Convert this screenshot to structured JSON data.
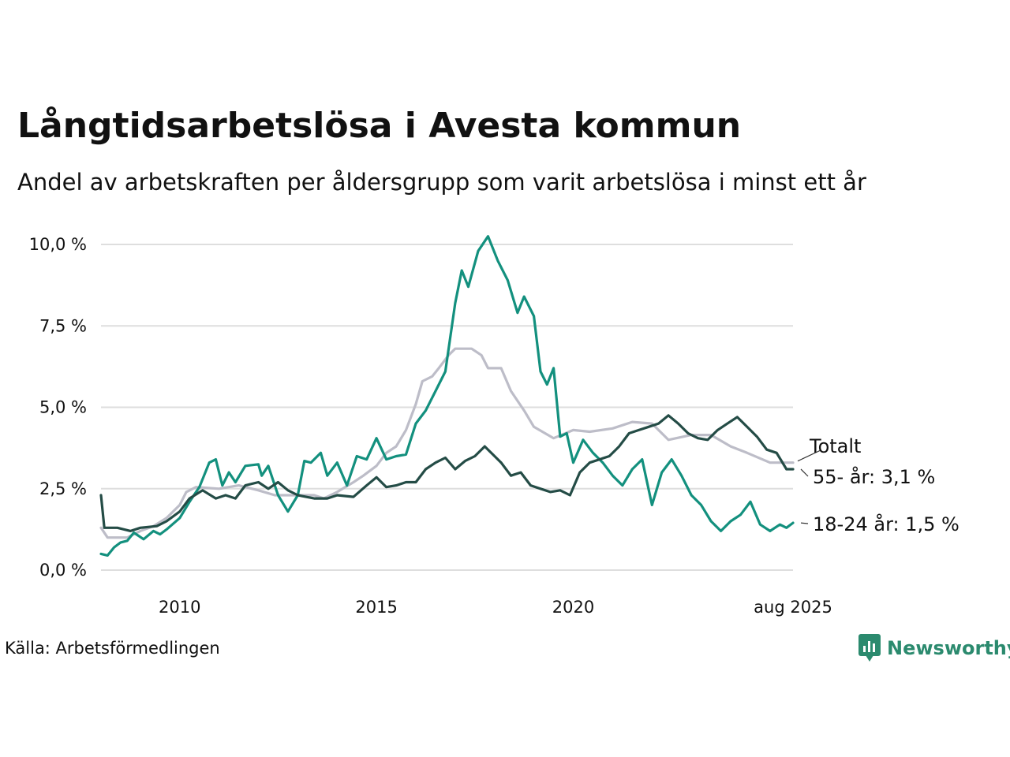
{
  "title": "Långtidsarbetslösa i Avesta kommun",
  "subtitle": "Andel av arbetskraften per åldersgrupp som varit arbetslösa i minst ett år",
  "source": "Källa: Arbetsförmedlingen",
  "brand": "Newsworthy",
  "colors": {
    "young": "#13907e",
    "old": "#244c46",
    "total": "#bdbdc8",
    "grid": "#dedede",
    "brand": "#2b8a6e"
  },
  "chart_data": {
    "type": "line",
    "title": "Långtidsarbetslösa i Avesta kommun",
    "xlabel": "",
    "ylabel": "",
    "xlim": [
      "2008-01",
      "2025-08"
    ],
    "ylim": [
      0,
      10
    ],
    "grid": true,
    "x_ticks": [
      {
        "x": "2010-01",
        "label": "2010"
      },
      {
        "x": "2015-01",
        "label": "2015"
      },
      {
        "x": "2020-01",
        "label": "2020"
      },
      {
        "x": "2025-08",
        "label": "aug 2025"
      }
    ],
    "y_ticks": [
      {
        "y": 0,
        "label": "0,0 %"
      },
      {
        "y": 2.5,
        "label": "2,5 %"
      },
      {
        "y": 5,
        "label": "5,0 %"
      },
      {
        "y": 7.5,
        "label": "7,5 %"
      },
      {
        "y": 10,
        "label": "10,0 %"
      }
    ],
    "end_labels": [
      {
        "series": "total",
        "label": "Totalt"
      },
      {
        "series": "old",
        "label": "55- år: 3,1 %"
      },
      {
        "series": "young",
        "label": "18-24 år: 1,5 %"
      }
    ],
    "series": [
      {
        "key": "total",
        "name": "Totalt",
        "points": [
          [
            "2008-01",
            1.3
          ],
          [
            "2008-03",
            1.0
          ],
          [
            "2008-09",
            1.0
          ],
          [
            "2009-01",
            1.2
          ],
          [
            "2009-05",
            1.35
          ],
          [
            "2009-09",
            1.6
          ],
          [
            "2010-01",
            2.0
          ],
          [
            "2010-03",
            2.4
          ],
          [
            "2010-06",
            2.55
          ],
          [
            "2011-01",
            2.5
          ],
          [
            "2011-07",
            2.6
          ],
          [
            "2012-01",
            2.45
          ],
          [
            "2012-06",
            2.3
          ],
          [
            "2013-01",
            2.3
          ],
          [
            "2013-06",
            2.3
          ],
          [
            "2013-09",
            2.2
          ],
          [
            "2014-01",
            2.4
          ],
          [
            "2014-06",
            2.7
          ],
          [
            "2014-09",
            2.9
          ],
          [
            "2015-01",
            3.2
          ],
          [
            "2015-04",
            3.6
          ],
          [
            "2015-07",
            3.8
          ],
          [
            "2015-10",
            4.3
          ],
          [
            "2016-01",
            5.1
          ],
          [
            "2016-03",
            5.8
          ],
          [
            "2016-06",
            5.95
          ],
          [
            "2016-08",
            6.2
          ],
          [
            "2016-11",
            6.6
          ],
          [
            "2017-01",
            6.8
          ],
          [
            "2017-06",
            6.8
          ],
          [
            "2017-09",
            6.6
          ],
          [
            "2017-11",
            6.2
          ],
          [
            "2018-03",
            6.2
          ],
          [
            "2018-06",
            5.5
          ],
          [
            "2018-10",
            4.9
          ],
          [
            "2019-01",
            4.4
          ],
          [
            "2019-07",
            4.05
          ],
          [
            "2020-01",
            4.3
          ],
          [
            "2020-06",
            4.25
          ],
          [
            "2021-01",
            4.35
          ],
          [
            "2021-07",
            4.55
          ],
          [
            "2022-01",
            4.5
          ],
          [
            "2022-06",
            4.0
          ],
          [
            "2023-01",
            4.15
          ],
          [
            "2023-07",
            4.15
          ],
          [
            "2024-01",
            3.8
          ],
          [
            "2024-06",
            3.6
          ],
          [
            "2025-01",
            3.3
          ],
          [
            "2025-08",
            3.3
          ]
        ]
      },
      {
        "key": "young",
        "name": "18-24 år",
        "points": [
          [
            "2008-01",
            0.5
          ],
          [
            "2008-03",
            0.45
          ],
          [
            "2008-05",
            0.7
          ],
          [
            "2008-07",
            0.85
          ],
          [
            "2008-09",
            0.9
          ],
          [
            "2008-11",
            1.15
          ],
          [
            "2009-02",
            0.95
          ],
          [
            "2009-05",
            1.2
          ],
          [
            "2009-07",
            1.1
          ],
          [
            "2009-09",
            1.25
          ],
          [
            "2010-01",
            1.6
          ],
          [
            "2010-04",
            2.1
          ],
          [
            "2010-07",
            2.55
          ],
          [
            "2010-10",
            3.3
          ],
          [
            "2010-12",
            3.4
          ],
          [
            "2011-02",
            2.6
          ],
          [
            "2011-04",
            3.0
          ],
          [
            "2011-06",
            2.7
          ],
          [
            "2011-09",
            3.2
          ],
          [
            "2012-01",
            3.25
          ],
          [
            "2012-02",
            2.9
          ],
          [
            "2012-04",
            3.2
          ],
          [
            "2012-07",
            2.3
          ],
          [
            "2012-10",
            1.8
          ],
          [
            "2013-01",
            2.3
          ],
          [
            "2013-03",
            3.35
          ],
          [
            "2013-05",
            3.3
          ],
          [
            "2013-08",
            3.6
          ],
          [
            "2013-10",
            2.9
          ],
          [
            "2014-01",
            3.3
          ],
          [
            "2014-04",
            2.6
          ],
          [
            "2014-07",
            3.5
          ],
          [
            "2014-10",
            3.4
          ],
          [
            "2015-01",
            4.05
          ],
          [
            "2015-04",
            3.4
          ],
          [
            "2015-07",
            3.5
          ],
          [
            "2015-10",
            3.55
          ],
          [
            "2016-01",
            4.5
          ],
          [
            "2016-04",
            4.9
          ],
          [
            "2016-07",
            5.5
          ],
          [
            "2016-10",
            6.1
          ],
          [
            "2017-01",
            8.2
          ],
          [
            "2017-03",
            9.2
          ],
          [
            "2017-05",
            8.7
          ],
          [
            "2017-08",
            9.8
          ],
          [
            "2017-11",
            10.25
          ],
          [
            "2018-02",
            9.5
          ],
          [
            "2018-05",
            8.9
          ],
          [
            "2018-08",
            7.9
          ],
          [
            "2018-10",
            8.4
          ],
          [
            "2019-01",
            7.8
          ],
          [
            "2019-03",
            6.1
          ],
          [
            "2019-05",
            5.7
          ],
          [
            "2019-07",
            6.2
          ],
          [
            "2019-09",
            4.1
          ],
          [
            "2019-11",
            4.2
          ],
          [
            "2020-01",
            3.3
          ],
          [
            "2020-04",
            4.0
          ],
          [
            "2020-07",
            3.6
          ],
          [
            "2020-10",
            3.3
          ],
          [
            "2021-01",
            2.9
          ],
          [
            "2021-04",
            2.6
          ],
          [
            "2021-07",
            3.1
          ],
          [
            "2021-10",
            3.4
          ],
          [
            "2022-01",
            2.0
          ],
          [
            "2022-04",
            3.0
          ],
          [
            "2022-07",
            3.4
          ],
          [
            "2022-10",
            2.9
          ],
          [
            "2023-01",
            2.3
          ],
          [
            "2023-04",
            2.0
          ],
          [
            "2023-07",
            1.5
          ],
          [
            "2023-10",
            1.2
          ],
          [
            "2024-01",
            1.5
          ],
          [
            "2024-04",
            1.7
          ],
          [
            "2024-07",
            2.1
          ],
          [
            "2024-10",
            1.4
          ],
          [
            "2025-01",
            1.2
          ],
          [
            "2025-04",
            1.4
          ],
          [
            "2025-06",
            1.3
          ],
          [
            "2025-08",
            1.45
          ]
        ]
      },
      {
        "key": "old",
        "name": "55- år",
        "points": [
          [
            "2008-01",
            2.3
          ],
          [
            "2008-02",
            1.3
          ],
          [
            "2008-06",
            1.3
          ],
          [
            "2008-10",
            1.2
          ],
          [
            "2009-01",
            1.3
          ],
          [
            "2009-06",
            1.35
          ],
          [
            "2009-09",
            1.5
          ],
          [
            "2010-01",
            1.8
          ],
          [
            "2010-04",
            2.2
          ],
          [
            "2010-08",
            2.45
          ],
          [
            "2010-12",
            2.2
          ],
          [
            "2011-03",
            2.3
          ],
          [
            "2011-06",
            2.2
          ],
          [
            "2011-09",
            2.6
          ],
          [
            "2012-01",
            2.7
          ],
          [
            "2012-04",
            2.5
          ],
          [
            "2012-07",
            2.7
          ],
          [
            "2012-10",
            2.45
          ],
          [
            "2013-01",
            2.3
          ],
          [
            "2013-06",
            2.2
          ],
          [
            "2013-10",
            2.2
          ],
          [
            "2014-01",
            2.3
          ],
          [
            "2014-06",
            2.25
          ],
          [
            "2014-10",
            2.6
          ],
          [
            "2015-01",
            2.85
          ],
          [
            "2015-04",
            2.55
          ],
          [
            "2015-07",
            2.6
          ],
          [
            "2015-10",
            2.7
          ],
          [
            "2016-01",
            2.7
          ],
          [
            "2016-04",
            3.1
          ],
          [
            "2016-07",
            3.3
          ],
          [
            "2016-10",
            3.45
          ],
          [
            "2017-01",
            3.1
          ],
          [
            "2017-04",
            3.35
          ],
          [
            "2017-07",
            3.5
          ],
          [
            "2017-10",
            3.8
          ],
          [
            "2018-01",
            3.5
          ],
          [
            "2018-03",
            3.3
          ],
          [
            "2018-06",
            2.9
          ],
          [
            "2018-09",
            3.0
          ],
          [
            "2018-12",
            2.6
          ],
          [
            "2019-03",
            2.5
          ],
          [
            "2019-06",
            2.4
          ],
          [
            "2019-09",
            2.45
          ],
          [
            "2019-12",
            2.3
          ],
          [
            "2020-03",
            3.0
          ],
          [
            "2020-06",
            3.3
          ],
          [
            "2020-09",
            3.4
          ],
          [
            "2020-12",
            3.5
          ],
          [
            "2021-03",
            3.8
          ],
          [
            "2021-06",
            4.2
          ],
          [
            "2021-09",
            4.3
          ],
          [
            "2021-12",
            4.4
          ],
          [
            "2022-03",
            4.5
          ],
          [
            "2022-06",
            4.75
          ],
          [
            "2022-09",
            4.5
          ],
          [
            "2022-12",
            4.2
          ],
          [
            "2023-03",
            4.05
          ],
          [
            "2023-06",
            4.0
          ],
          [
            "2023-09",
            4.3
          ],
          [
            "2023-12",
            4.5
          ],
          [
            "2024-03",
            4.7
          ],
          [
            "2024-06",
            4.4
          ],
          [
            "2024-09",
            4.1
          ],
          [
            "2024-12",
            3.7
          ],
          [
            "2025-03",
            3.6
          ],
          [
            "2025-06",
            3.1
          ],
          [
            "2025-08",
            3.1
          ]
        ]
      }
    ]
  }
}
